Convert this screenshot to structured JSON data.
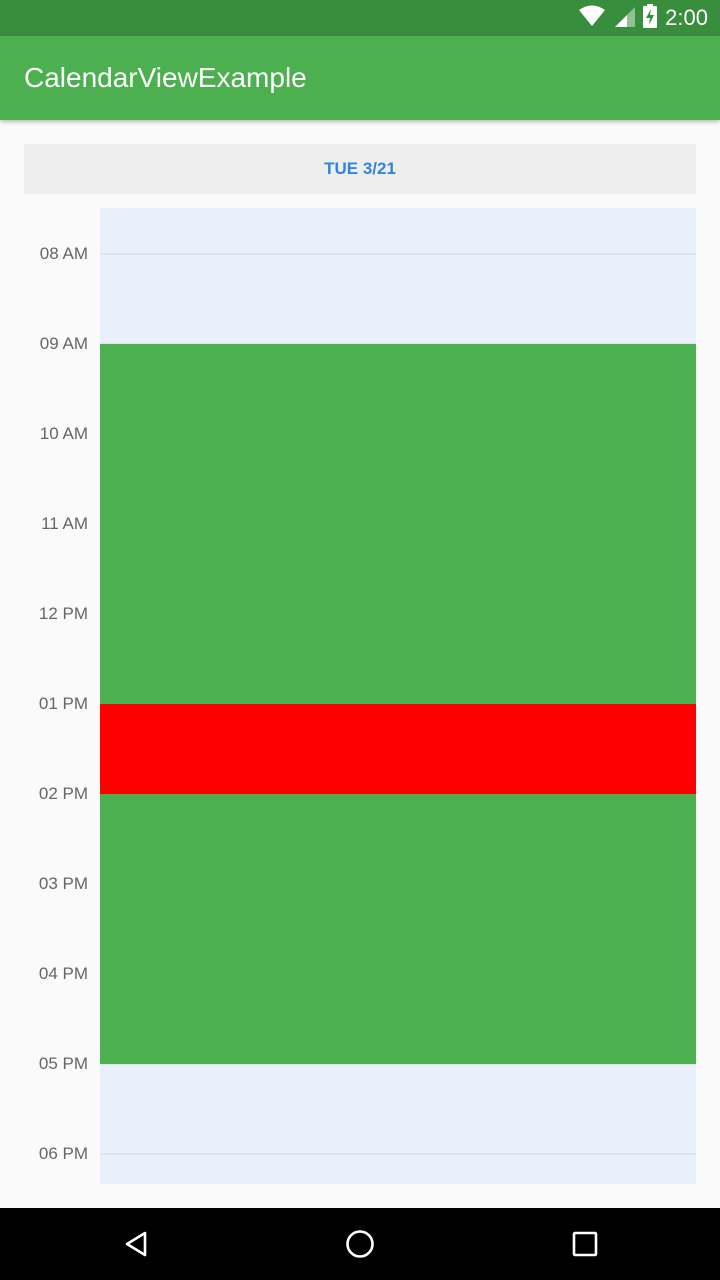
{
  "status_bar": {
    "time": "2:00",
    "icons": [
      "wifi-icon",
      "cell-signal-icon",
      "battery-charging-icon"
    ]
  },
  "app_bar": {
    "title": "CalendarViewExample"
  },
  "day_header": {
    "label": "TUE 3/21"
  },
  "timeline": {
    "hours": [
      "08 AM",
      "09 AM",
      "10 AM",
      "11 AM",
      "12 PM",
      "01 PM",
      "02 PM",
      "03 PM",
      "04 PM",
      "05 PM",
      "06 PM"
    ],
    "events": [
      {
        "start": "09 AM",
        "end": "01 PM",
        "color": "#4caf50"
      },
      {
        "start": "01 PM",
        "end": "02 PM",
        "color": "#ff0000"
      },
      {
        "start": "02 PM",
        "end": "05 PM",
        "color": "#4caf50"
      }
    ]
  },
  "nav_bar": {
    "buttons": [
      "back-icon",
      "home-icon",
      "recents-icon"
    ]
  },
  "colors": {
    "status_bar": "#388e3c",
    "app_bar": "#4caf50",
    "day_label": "#2f86d8",
    "grid_background": "#e8f0fa"
  }
}
